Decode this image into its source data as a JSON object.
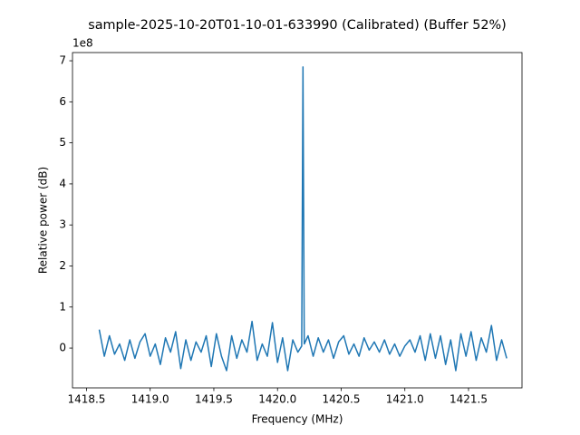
{
  "chart_data": {
    "type": "line",
    "title": "sample-2025-10-20T01-10-01-633990 (Calibrated) (Buffer 52%)",
    "x_label": "Frequency (MHz)",
    "y_label": "Relative power (dB)",
    "y_offset_label": "1e8",
    "xlim": [
      1418.39,
      1421.92
    ],
    "ylim": [
      -0.97,
      7.2
    ],
    "xticks": [
      1418.5,
      {
        "value": 1419.0,
        "label": "1419.0"
      },
      1419.5,
      {
        "value": 1420.0,
        "label": "1420.0"
      },
      1420.5,
      {
        "value": 1421.0,
        "label": "1421.0"
      },
      1421.5
    ],
    "yticks": [
      0,
      1,
      2,
      3,
      4,
      5,
      6,
      7
    ],
    "grid": false,
    "x": [
      1418.6,
      1418.64,
      1418.68,
      1418.72,
      1418.76,
      1418.8,
      1418.84,
      1418.88,
      1418.92,
      1418.96,
      1419,
      1419.04,
      1419.08,
      1419.12,
      1419.16,
      1419.2,
      1419.24,
      1419.28,
      1419.32,
      1419.36,
      1419.4,
      1419.44,
      1419.48,
      1419.52,
      1419.56,
      1419.6,
      1419.64,
      1419.68,
      1419.72,
      1419.76,
      1419.8,
      1419.84,
      1419.88,
      1419.92,
      1419.96,
      1420,
      1420.04,
      1420.08,
      1420.12,
      1420.16,
      1420.19,
      1420.2,
      1420.21,
      1420.24,
      1420.28,
      1420.32,
      1420.36,
      1420.4,
      1420.44,
      1420.48,
      1420.52,
      1420.56,
      1420.6,
      1420.64,
      1420.68,
      1420.72,
      1420.76,
      1420.8,
      1420.84,
      1420.88,
      1420.92,
      1420.96,
      1421,
      1421.04,
      1421.08,
      1421.12,
      1421.16,
      1421.2,
      1421.24,
      1421.28,
      1421.32,
      1421.36,
      1421.4,
      1421.44,
      1421.48,
      1421.52,
      1421.56,
      1421.6,
      1421.64,
      1421.68,
      1421.72,
      1421.76,
      1421.8
    ],
    "series": [
      {
        "color": "#1f77b4",
        "values": [
          0.45,
          -0.2,
          0.3,
          -0.15,
          0.1,
          -0.3,
          0.2,
          -0.25,
          0.15,
          0.35,
          -0.2,
          0.1,
          -0.4,
          0.25,
          -0.1,
          0.4,
          -0.5,
          0.2,
          -0.3,
          0.15,
          -0.1,
          0.3,
          -0.45,
          0.35,
          -0.2,
          -0.55,
          0.3,
          -0.25,
          0.2,
          -0.1,
          0.65,
          -0.3,
          0.1,
          -0.2,
          0.62,
          -0.35,
          0.25,
          -0.55,
          0.2,
          -0.1,
          0.05,
          6.85,
          0.1,
          0.3,
          -0.2,
          0.25,
          -0.1,
          0.2,
          -0.25,
          0.15,
          0.3,
          -0.15,
          0.1,
          -0.2,
          0.25,
          -0.05,
          0.15,
          -0.1,
          0.2,
          -0.15,
          0.1,
          -0.2,
          0.05,
          0.2,
          -0.1,
          0.3,
          -0.3,
          0.35,
          -0.25,
          0.3,
          -0.4,
          0.2,
          -0.55,
          0.35,
          -0.2,
          0.4,
          -0.3,
          0.25,
          -0.1,
          0.55,
          -0.3,
          0.2,
          -0.25
        ]
      }
    ]
  }
}
